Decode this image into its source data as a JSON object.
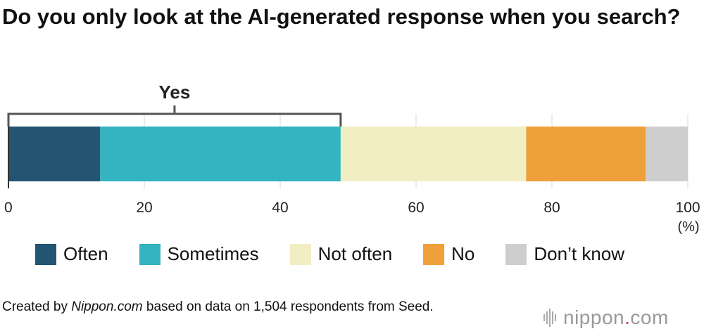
{
  "title": "Do you only look at the AI-generated response when you search?",
  "chart_data": {
    "type": "bar",
    "orientation": "horizontal-stacked",
    "title": "Do you only look at the AI-generated response when you search?",
    "categories": [
      "Often",
      "Sometimes",
      "Not often",
      "No",
      "Don’t know"
    ],
    "values": [
      13.5,
      35.4,
      27.3,
      17.6,
      6.2
    ],
    "colors": [
      "#235572",
      "#34b3c0",
      "#f2eec4",
      "#f0a03a",
      "#cecece"
    ],
    "bracket": {
      "label": "Yes",
      "from": 0,
      "to": 48.9
    },
    "xlim": [
      0,
      100
    ],
    "xticks": [
      "0",
      "20",
      "40",
      "60",
      "80",
      "100"
    ],
    "xunit": "(%)",
    "grid": true,
    "legend": "bottom"
  },
  "note": {
    "prefix": "Created by ",
    "source": "Nippon.com",
    "suffix": " based on data on 1,504 respondents from Seed."
  },
  "logo": {
    "name": "nippon",
    "dot": ".",
    "tld": "com"
  }
}
